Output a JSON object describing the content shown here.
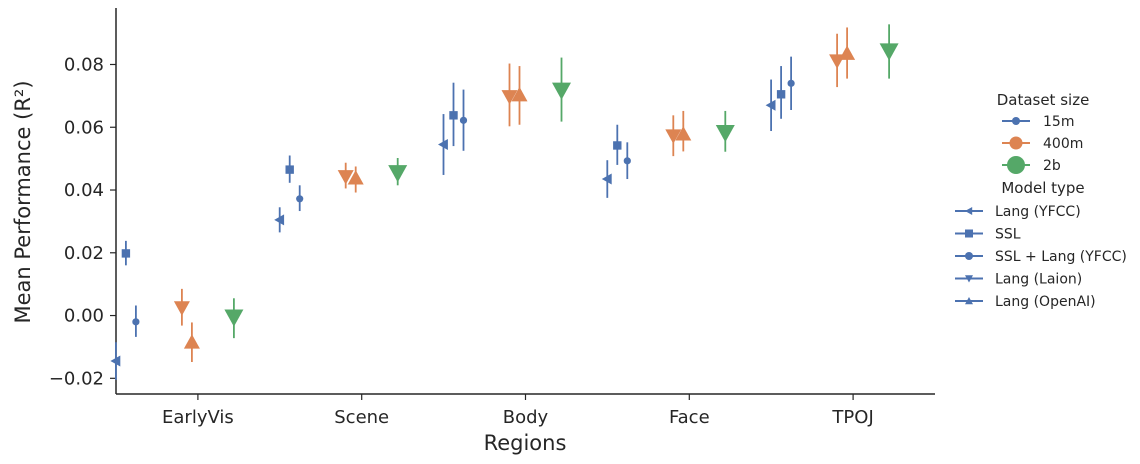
{
  "chart_data": {
    "type": "scatter",
    "xlabel": "Regions",
    "ylabel": "Mean Performance (R²)",
    "categories": [
      "EarlyVis",
      "Scene",
      "Body",
      "Face",
      "TPOJ"
    ],
    "ylim": [
      -0.025,
      0.098
    ],
    "yticks": [
      -0.02,
      0.0,
      0.02,
      0.04,
      0.06,
      0.08
    ],
    "ytick_labels": [
      "−0.02",
      "0.00",
      "0.02",
      "0.04",
      "0.06",
      "0.08"
    ],
    "grid": false,
    "legend": {
      "placement": "right",
      "hue_title": "Dataset size",
      "style_title": "Model type",
      "hue_entries": [
        {
          "label": "15m",
          "color": "#4c72b0"
        },
        {
          "label": "400m",
          "color": "#dd8452"
        },
        {
          "label": "2b",
          "color": "#55a868"
        }
      ],
      "style_entries": [
        {
          "label": "Lang (YFCC)",
          "marker": "triangle-left"
        },
        {
          "label": "SSL",
          "marker": "square"
        },
        {
          "label": "SSL + Lang (YFCC)",
          "marker": "circle"
        },
        {
          "label": "Lang (Laion)",
          "marker": "triangle-down"
        },
        {
          "label": "Lang (OpenAI)",
          "marker": "triangle-up"
        }
      ]
    },
    "series": [
      {
        "dataset": "15m",
        "model": "Lang (YFCC)",
        "color": "#4c72b0",
        "marker": "triangle-left",
        "values": [
          -0.0145,
          0.0305,
          0.0545,
          0.0435,
          0.067
        ],
        "err_low": [
          -0.0205,
          0.0265,
          0.0448,
          0.0375,
          0.0588
        ],
        "err_high": [
          -0.0085,
          0.0345,
          0.0642,
          0.0495,
          0.0752
        ]
      },
      {
        "dataset": "15m",
        "model": "SSL",
        "color": "#4c72b0",
        "marker": "square",
        "values": [
          0.0198,
          0.0465,
          0.0638,
          0.0542,
          0.0705
        ],
        "err_low": [
          0.016,
          0.0423,
          0.054,
          0.048,
          0.0627
        ],
        "err_high": [
          0.0238,
          0.051,
          0.0742,
          0.0608,
          0.0795
        ]
      },
      {
        "dataset": "15m",
        "model": "SSL + Lang (YFCC)",
        "color": "#4c72b0",
        "marker": "circle",
        "values": [
          -0.002,
          0.0372,
          0.0622,
          0.0493,
          0.074
        ],
        "err_low": [
          -0.0068,
          0.0333,
          0.0525,
          0.0435,
          0.0655
        ],
        "err_high": [
          0.0032,
          0.0415,
          0.072,
          0.0552,
          0.0825
        ]
      },
      {
        "dataset": "400m",
        "model": "Lang (Laion)",
        "color": "#dd8452",
        "marker": "triangle-down",
        "values": [
          0.0025,
          0.0443,
          0.0698,
          0.0573,
          0.0812
        ],
        "err_low": [
          -0.0032,
          0.0405,
          0.0603,
          0.0508,
          0.0728
        ],
        "err_high": [
          0.0085,
          0.0487,
          0.0803,
          0.0638,
          0.0898
        ]
      },
      {
        "dataset": "400m",
        "model": "Lang (OpenAI)",
        "color": "#dd8452",
        "marker": "triangle-up",
        "values": [
          -0.0085,
          0.0438,
          0.0703,
          0.0578,
          0.0835
        ],
        "err_low": [
          -0.0148,
          0.0392,
          0.0608,
          0.0523,
          0.0755
        ],
        "err_high": [
          -0.0022,
          0.0475,
          0.0795,
          0.0652,
          0.0918
        ]
      },
      {
        "dataset": "2b",
        "model": "Lang (Laion)",
        "color": "#55a868",
        "marker": "triangle-down",
        "values": [
          -0.0005,
          0.0455,
          0.0718,
          0.0583,
          0.0843
        ],
        "err_low": [
          -0.0072,
          0.0415,
          0.0618,
          0.0522,
          0.0755
        ],
        "err_high": [
          0.0055,
          0.0502,
          0.0822,
          0.0652,
          0.0928
        ]
      }
    ]
  }
}
